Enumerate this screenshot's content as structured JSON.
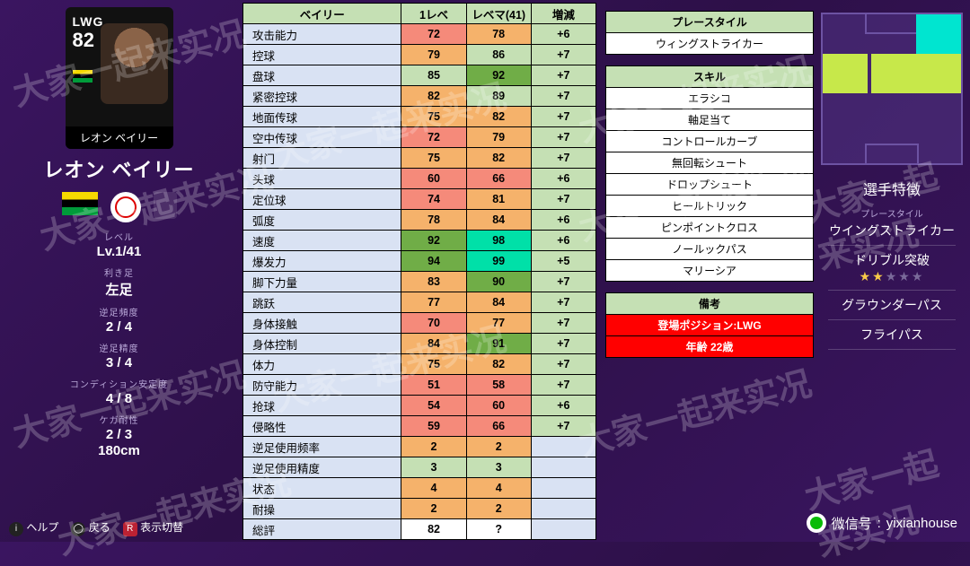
{
  "card": {
    "position": "LWG",
    "overall": "82",
    "name_jp": "レオン ベイリー"
  },
  "player_name": "レオン ベイリー",
  "meta": [
    {
      "label": "レベル",
      "value": "Lv.1/41"
    },
    {
      "label": "利き足",
      "value": "左足"
    },
    {
      "label": "逆足頻度",
      "value": "2 / 4"
    },
    {
      "label": "逆足精度",
      "value": "3 / 4"
    },
    {
      "label": "コンディション安定度",
      "value": "4 / 8"
    },
    {
      "label": "ケガ耐性",
      "value": "2 / 3"
    },
    {
      "label": "",
      "value": "180cm"
    }
  ],
  "bottombar": {
    "help": "ヘルプ",
    "back": "戻る",
    "switch": "表示切替"
  },
  "stats": {
    "headers": [
      "ベイリー",
      "1レベ",
      "レベマ(41)",
      "増減"
    ],
    "summary_label": "総評",
    "summary": {
      "base": "82",
      "max": "?"
    },
    "colors": {
      "red": "#f58a7a",
      "orange": "#f5b26b",
      "yellow": "#ffe699",
      "lime": "#c5e0b4",
      "green": "#70ad47",
      "teal": "#00e0a8",
      "blank": "#d9e2f3",
      "diff": "#c5e0b4"
    },
    "rows": [
      {
        "label": "攻击能力",
        "base": 72,
        "max": 78,
        "diff": "+6",
        "c1": "red",
        "c2": "orange"
      },
      {
        "label": "控球",
        "base": 79,
        "max": 86,
        "diff": "+7",
        "c1": "orange",
        "c2": "lime"
      },
      {
        "label": "盘球",
        "base": 85,
        "max": 92,
        "diff": "+7",
        "c1": "lime",
        "c2": "green"
      },
      {
        "label": "紧密控球",
        "base": 82,
        "max": 89,
        "diff": "+7",
        "c1": "orange",
        "c2": "lime"
      },
      {
        "label": "地面传球",
        "base": 75,
        "max": 82,
        "diff": "+7",
        "c1": "orange",
        "c2": "orange"
      },
      {
        "label": "空中传球",
        "base": 72,
        "max": 79,
        "diff": "+7",
        "c1": "red",
        "c2": "orange"
      },
      {
        "label": "射门",
        "base": 75,
        "max": 82,
        "diff": "+7",
        "c1": "orange",
        "c2": "orange"
      },
      {
        "label": "头球",
        "base": 60,
        "max": 66,
        "diff": "+6",
        "c1": "red",
        "c2": "red"
      },
      {
        "label": "定位球",
        "base": 74,
        "max": 81,
        "diff": "+7",
        "c1": "red",
        "c2": "orange"
      },
      {
        "label": "弧度",
        "base": 78,
        "max": 84,
        "diff": "+6",
        "c1": "orange",
        "c2": "orange"
      },
      {
        "label": "速度",
        "base": 92,
        "max": 98,
        "diff": "+6",
        "c1": "green",
        "c2": "teal"
      },
      {
        "label": "爆发力",
        "base": 94,
        "max": 99,
        "diff": "+5",
        "c1": "green",
        "c2": "teal"
      },
      {
        "label": "脚下力量",
        "base": 83,
        "max": 90,
        "diff": "+7",
        "c1": "orange",
        "c2": "green"
      },
      {
        "label": "跳跃",
        "base": 77,
        "max": 84,
        "diff": "+7",
        "c1": "orange",
        "c2": "orange"
      },
      {
        "label": "身体接触",
        "base": 70,
        "max": 77,
        "diff": "+7",
        "c1": "red",
        "c2": "orange"
      },
      {
        "label": "身体控制",
        "base": 84,
        "max": 91,
        "diff": "+7",
        "c1": "orange",
        "c2": "green"
      },
      {
        "label": "体力",
        "base": 75,
        "max": 82,
        "diff": "+7",
        "c1": "orange",
        "c2": "orange"
      },
      {
        "label": "防守能力",
        "base": 51,
        "max": 58,
        "diff": "+7",
        "c1": "red",
        "c2": "red"
      },
      {
        "label": "抢球",
        "base": 54,
        "max": 60,
        "diff": "+6",
        "c1": "red",
        "c2": "red"
      },
      {
        "label": "侵略性",
        "base": 59,
        "max": 66,
        "diff": "+7",
        "c1": "red",
        "c2": "red"
      },
      {
        "label": "逆足使用频率",
        "base": 2,
        "max": 2,
        "diff": "",
        "c1": "orange",
        "c2": "orange"
      },
      {
        "label": "逆足使用精度",
        "base": 3,
        "max": 3,
        "diff": "",
        "c1": "lime",
        "c2": "lime"
      },
      {
        "label": "状态",
        "base": 4,
        "max": 4,
        "diff": "",
        "c1": "orange",
        "c2": "orange"
      },
      {
        "label": "耐操",
        "base": 2,
        "max": 2,
        "diff": "",
        "c1": "orange",
        "c2": "orange"
      }
    ]
  },
  "info": {
    "playstyle_header": "プレースタイル",
    "playstyle": "ウィングストライカー",
    "skills_header": "スキル",
    "skills": [
      "エラシコ",
      "軸足当て",
      "コントロールカーブ",
      "無回転シュート",
      "ドロップシュート",
      "ヒールトリック",
      "ピンポイントクロス",
      "ノールックパス",
      "マリーシア"
    ],
    "remarks_header": "備考",
    "remarks": [
      "登場ポジション:LWG",
      "年齢 22歳"
    ]
  },
  "traits": {
    "title": "選手特徴",
    "items": [
      {
        "label": "プレースタイル",
        "value": "ウイングストライカー"
      },
      {
        "label": "",
        "value": "ドリブル突破",
        "stars": 2
      },
      {
        "label": "",
        "value": "グラウンダーパス"
      },
      {
        "label": "",
        "value": "フライパス"
      }
    ]
  },
  "wechat": {
    "prefix": "微信号",
    "id": "yixianhouse"
  },
  "watermark_text": "大家一起来实况"
}
